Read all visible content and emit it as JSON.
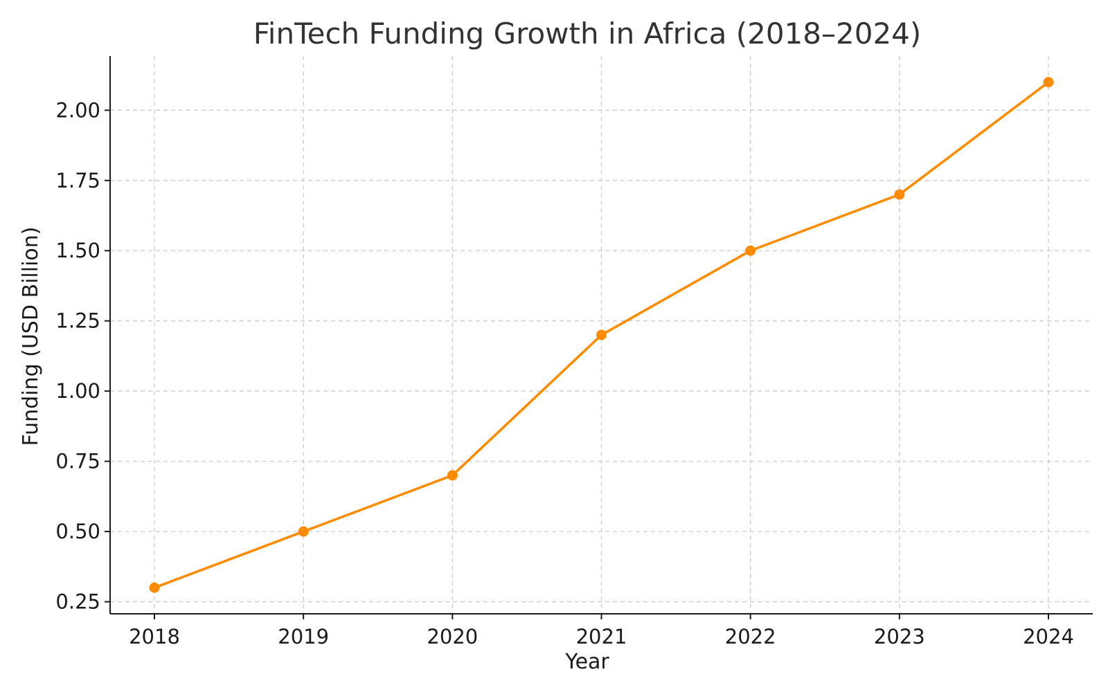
{
  "chart_data": {
    "type": "line",
    "title": "FinTech Funding Growth in Africa (2018–2024)",
    "xlabel": "Year",
    "ylabel": "Funding (USD Billion)",
    "categories": [
      "2018",
      "2019",
      "2020",
      "2021",
      "2022",
      "2023",
      "2024"
    ],
    "series": [
      {
        "values": [
          0.3,
          0.5,
          0.7,
          1.2,
          1.5,
          1.7,
          2.1
        ],
        "color": "#ff8c00",
        "marker": "circle"
      }
    ],
    "yticks": [
      "0.25",
      "0.50",
      "0.75",
      "1.00",
      "1.25",
      "1.50",
      "1.75",
      "2.00"
    ],
    "ylim": [
      0.207,
      2.193
    ],
    "grid": true,
    "grid_style": "dashed",
    "legend": "none"
  }
}
